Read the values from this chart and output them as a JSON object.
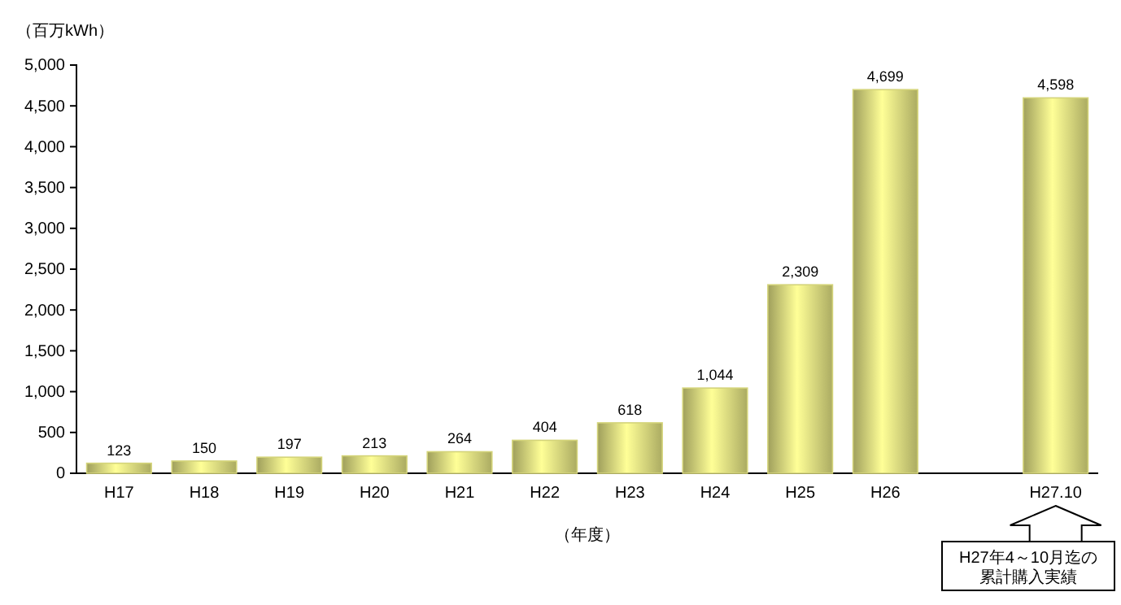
{
  "chart_data": {
    "type": "bar",
    "ylabel": "（百万kWh）",
    "xlabel": "（年度）",
    "categories": [
      "H17",
      "H18",
      "H19",
      "H20",
      "H21",
      "H22",
      "H23",
      "H24",
      "H25",
      "H26",
      null,
      "H27.10"
    ],
    "values": [
      123,
      150,
      197,
      213,
      264,
      404,
      618,
      1044,
      2309,
      4699,
      null,
      4598
    ],
    "color": "#d4d47a",
    "ylim": [
      0,
      5000
    ],
    "yticks": [
      {
        "value": 0,
        "label": "0"
      },
      {
        "value": 500,
        "label": "500"
      },
      {
        "value": 1000,
        "label": "1,000"
      },
      {
        "value": 1500,
        "label": "1,500"
      },
      {
        "value": 2000,
        "label": "2,000"
      },
      {
        "value": 2500,
        "label": "2,500"
      },
      {
        "value": 3000,
        "label": "3,000"
      },
      {
        "value": 3500,
        "label": "3,500"
      },
      {
        "value": 4000,
        "label": "4,000"
      },
      {
        "value": 4500,
        "label": "4,500"
      },
      {
        "value": 5000,
        "label": "5,000"
      }
    ],
    "value_labels": [
      "123",
      "150",
      "197",
      "213",
      "264",
      "404",
      "618",
      "1,044",
      "2,309",
      "4,699",
      null,
      "4,598"
    ],
    "grid": false,
    "annotations": [
      "H27年4～10月迄の累計購入実績"
    ]
  }
}
